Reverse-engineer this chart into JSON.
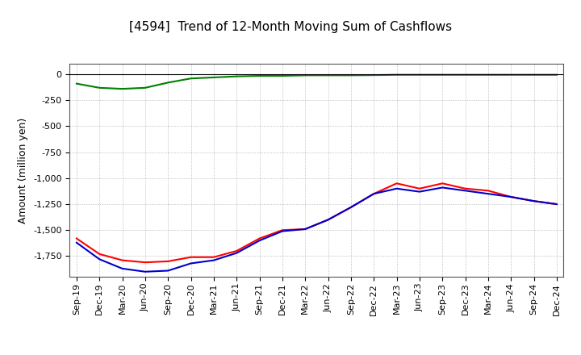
{
  "title": "[4594]  Trend of 12-Month Moving Sum of Cashflows",
  "ylabel": "Amount (million yen)",
  "xlabels": [
    "Sep-19",
    "Dec-19",
    "Mar-20",
    "Jun-20",
    "Sep-20",
    "Dec-20",
    "Mar-21",
    "Jun-21",
    "Sep-21",
    "Dec-21",
    "Mar-22",
    "Jun-22",
    "Sep-22",
    "Dec-22",
    "Mar-23",
    "Jun-23",
    "Sep-23",
    "Dec-23",
    "Mar-24",
    "Jun-24",
    "Sep-24",
    "Dec-24"
  ],
  "operating_cashflow": [
    -1580,
    -1730,
    -1790,
    -1810,
    -1800,
    -1760,
    -1760,
    -1700,
    -1580,
    -1500,
    -1490,
    -1400,
    -1280,
    -1150,
    -1050,
    -1100,
    -1050,
    -1100,
    -1120,
    -1180,
    -1220,
    -1250
  ],
  "investing_cashflow": [
    -90,
    -130,
    -140,
    -130,
    -80,
    -40,
    -30,
    -20,
    -15,
    -15,
    -10,
    -10,
    -10,
    -8,
    -5,
    -5,
    -5,
    -5,
    -5,
    -5,
    -5,
    -5
  ],
  "free_cashflow": [
    -1620,
    -1780,
    -1870,
    -1900,
    -1890,
    -1820,
    -1790,
    -1720,
    -1600,
    -1510,
    -1490,
    -1400,
    -1280,
    -1150,
    -1100,
    -1130,
    -1090,
    -1120,
    -1150,
    -1180,
    -1220,
    -1250
  ],
  "operating_color": "#ff0000",
  "investing_color": "#008000",
  "free_color": "#0000cc",
  "ylim": [
    -1950,
    100
  ],
  "yticks": [
    0,
    -250,
    -500,
    -750,
    -1000,
    -1250,
    -1500,
    -1750
  ],
  "bg_color": "#ffffff",
  "plot_bg_color": "#ffffff",
  "grid_color": "#999999",
  "title_fontsize": 11,
  "axis_fontsize": 9,
  "tick_fontsize": 8,
  "legend_fontsize": 9
}
